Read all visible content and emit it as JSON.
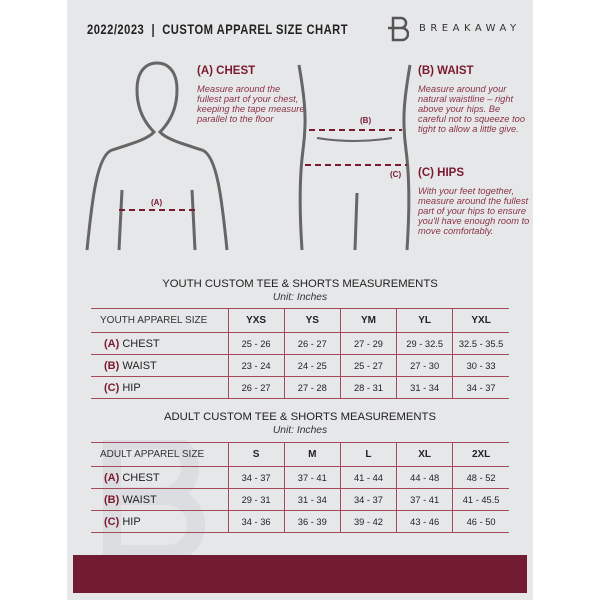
{
  "header": {
    "title": "2022/2023  |  CUSTOM APPAREL SIZE CHART",
    "brand": "BREAKAWAY"
  },
  "guide": {
    "chest": {
      "heading": "(A) CHEST",
      "text": "Measure around the fullest part of your chest, keeping the tape measure parallel to the floor",
      "marker": "(A)"
    },
    "waist": {
      "heading": "(B) WAIST",
      "text": "Measure around your natural waistline – right above your hips. Be careful not to squeeze too tight to allow a little give.",
      "marker": "(B)"
    },
    "hips": {
      "heading": "(C) HIPS",
      "text": "With your feet together, measure around the fullest part of your hips to ensure you'll have enough room to move comfortably.",
      "marker": "(C)"
    }
  },
  "youth": {
    "title": "YOUTH CUSTOM TEE & SHORTS MEASUREMENTS",
    "unit": "Unit: Inches",
    "label": "YOUTH APPAREL SIZE",
    "sizes": [
      "YXS",
      "YS",
      "YM",
      "YL",
      "YXL"
    ],
    "rows": [
      {
        "code": "(A)",
        "name": "CHEST",
        "values": [
          "25 - 26",
          "26 - 27",
          "27 - 29",
          "29 - 32.5",
          "32.5 - 35.5"
        ]
      },
      {
        "code": "(B)",
        "name": "WAIST",
        "values": [
          "23 - 24",
          "24 - 25",
          "25 - 27",
          "27 - 30",
          "30 - 33"
        ]
      },
      {
        "code": "(C)",
        "name": "HIP",
        "values": [
          "26 - 27",
          "27 - 28",
          "28 - 31",
          "31 - 34",
          "34 - 37"
        ]
      }
    ]
  },
  "adult": {
    "title": "ADULT CUSTOM TEE & SHORTS MEASUREMENTS",
    "unit": "Unit: Inches",
    "label": "ADULT APPAREL SIZE",
    "sizes": [
      "S",
      "M",
      "L",
      "XL",
      "2XL"
    ],
    "rows": [
      {
        "code": "(A)",
        "name": "CHEST",
        "values": [
          "34 - 37",
          "37 - 41",
          "41 - 44",
          "44 - 48",
          "48 - 52"
        ]
      },
      {
        "code": "(B)",
        "name": "WAIST",
        "values": [
          "29 - 31",
          "31 - 34",
          "34 - 37",
          "37 - 41",
          "41 - 45.5"
        ]
      },
      {
        "code": "(C)",
        "name": "HIP",
        "values": [
          "34 - 36",
          "36 - 39",
          "39 - 42",
          "43 - 46",
          "46 - 50"
        ]
      }
    ]
  },
  "colors": {
    "accent": "#731c31",
    "page": "#e6e7e9"
  }
}
